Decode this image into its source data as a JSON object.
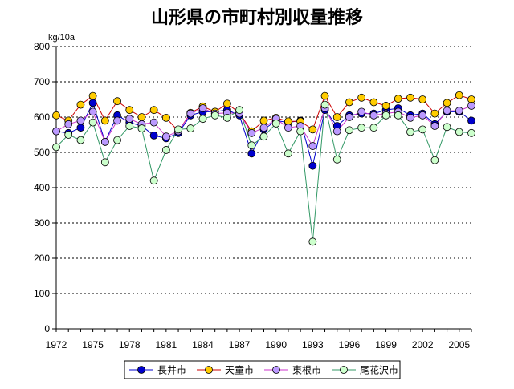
{
  "chart_data": {
    "type": "line",
    "title": "山形県の市町村別収量推移",
    "ylabel": "kg/10a",
    "xlabel": "",
    "ylim": [
      0,
      800
    ],
    "yticks": [
      0,
      100,
      200,
      300,
      400,
      500,
      600,
      700,
      800
    ],
    "xlim": [
      1972,
      2006
    ],
    "xtick_labels": [
      "1972",
      "1975",
      "1978",
      "1981",
      "1984",
      "1987",
      "1990",
      "1993",
      "1996",
      "1999",
      "2002",
      "2005"
    ],
    "grid": "horizontal-dotted",
    "legend_position": "bottom",
    "x": [
      1972,
      1973,
      1974,
      1975,
      1976,
      1977,
      1978,
      1979,
      1980,
      1981,
      1982,
      1983,
      1984,
      1985,
      1986,
      1987,
      1988,
      1989,
      1990,
      1991,
      1992,
      1993,
      1994,
      1995,
      1996,
      1997,
      1998,
      1999,
      2000,
      2001,
      2002,
      2003,
      2004,
      2005,
      2006
    ],
    "series": [
      {
        "name": "長井市",
        "line_color": "#0000cc",
        "marker_color": "#0000cc",
        "values": [
          560,
          555,
          570,
          640,
          530,
          605,
          585,
          575,
          548,
          540,
          555,
          605,
          615,
          615,
          620,
          605,
          497,
          565,
          590,
          585,
          590,
          462,
          620,
          575,
          605,
          610,
          610,
          620,
          625,
          605,
          610,
          580,
          615,
          615,
          590
        ]
      },
      {
        "name": "天童市",
        "line_color": "#cc0000",
        "marker_color": "#ffcc00",
        "values": [
          605,
          590,
          635,
          660,
          590,
          645,
          620,
          600,
          620,
          598,
          560,
          612,
          630,
          615,
          638,
          612,
          560,
          590,
          598,
          588,
          588,
          565,
          660,
          600,
          642,
          655,
          642,
          632,
          652,
          655,
          650,
          610,
          640,
          662,
          650
        ]
      },
      {
        "name": "東根市",
        "line_color": "#cc33cc",
        "marker_color": "#bb99ff",
        "values": [
          560,
          580,
          590,
          615,
          530,
          590,
          595,
          580,
          585,
          545,
          560,
          610,
          625,
          610,
          612,
          610,
          555,
          570,
          595,
          570,
          575,
          518,
          625,
          560,
          600,
          615,
          605,
          610,
          615,
          598,
          605,
          575,
          618,
          618,
          632
        ]
      },
      {
        "name": "尾花沢市",
        "line_color": "#339966",
        "marker_color": "#ccffcc",
        "values": [
          515,
          550,
          535,
          585,
          472,
          535,
          575,
          568,
          420,
          507,
          565,
          568,
          595,
          605,
          598,
          620,
          520,
          545,
          582,
          497,
          560,
          247,
          635,
          480,
          563,
          570,
          570,
          605,
          605,
          558,
          565,
          478,
          572,
          558,
          555
        ]
      }
    ]
  }
}
